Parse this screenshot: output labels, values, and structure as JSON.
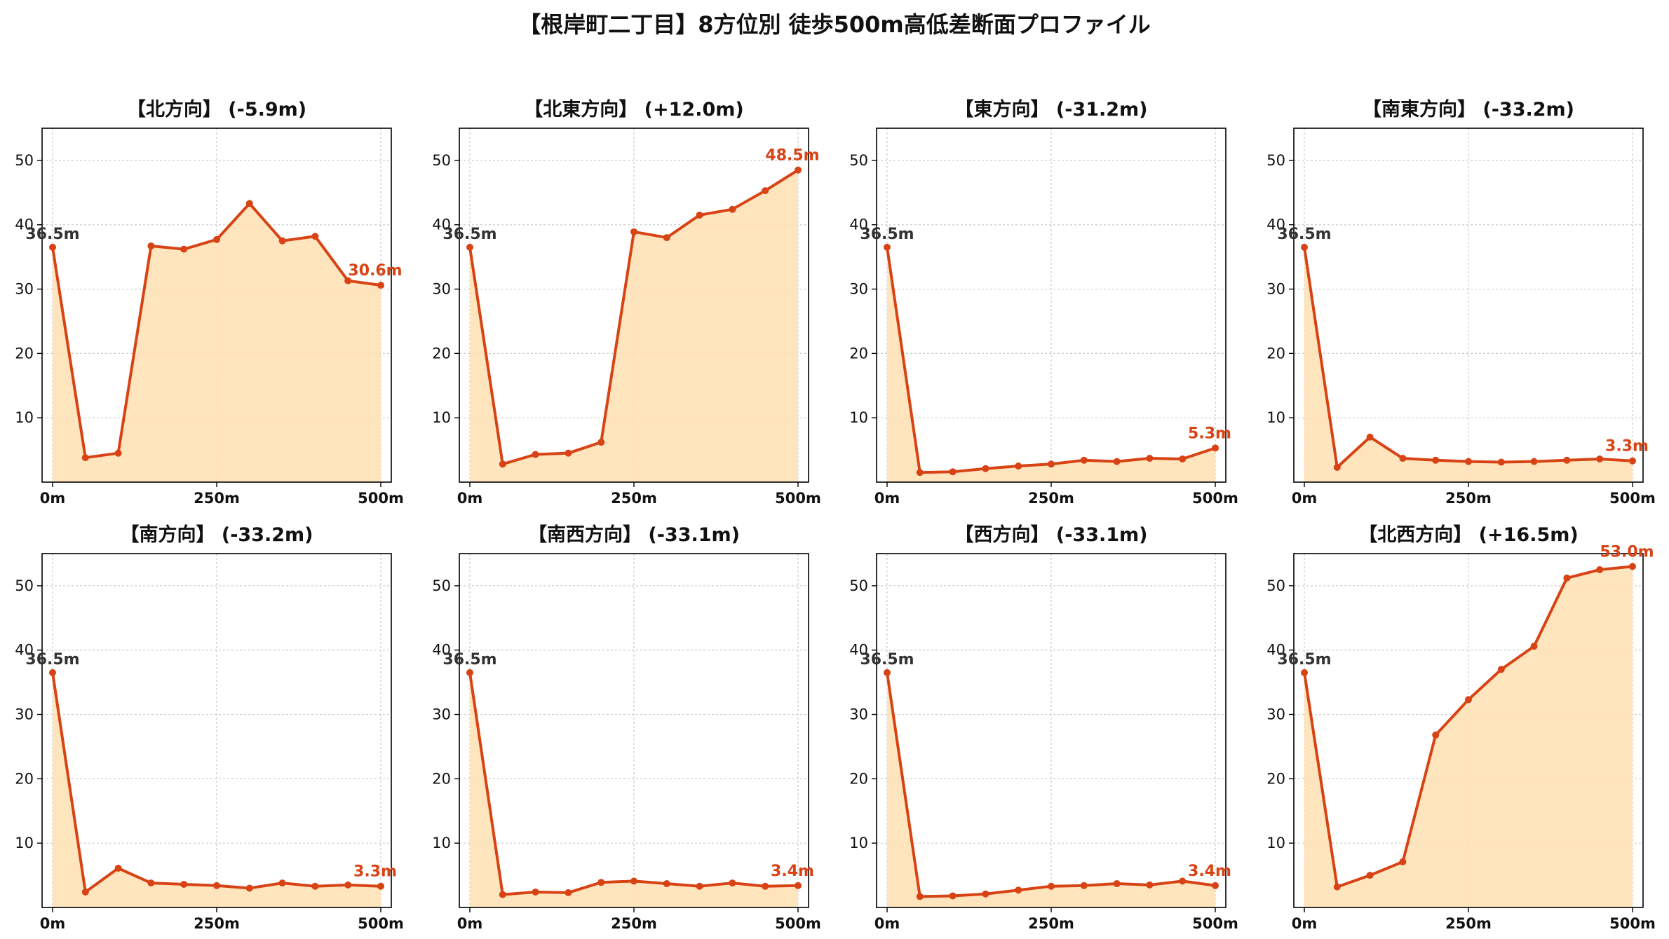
{
  "title": "【根岸町二丁目】8方位別 徒歩500m高低差断面プロファイル",
  "colors": {
    "line": "#d84315",
    "fill": "#ffe0b2",
    "start_label": "#333333",
    "end_label": "#d84315",
    "grid": "#cccccc"
  },
  "axis": {
    "x_ticks": [
      0,
      250,
      500
    ],
    "x_tick_labels": [
      "0m",
      "250m",
      "500m"
    ],
    "y_ticks": [
      10,
      20,
      30,
      40,
      50
    ],
    "y_tick_labels": [
      "10",
      "20",
      "30",
      "40",
      "50"
    ]
  },
  "chart_data": [
    {
      "type": "line",
      "title": "【北方向】 (-5.9m)",
      "x": [
        0,
        50,
        100,
        150,
        200,
        250,
        300,
        350,
        400,
        450,
        500
      ],
      "y": [
        36.5,
        3.8,
        4.5,
        36.7,
        36.2,
        37.7,
        43.3,
        37.5,
        38.2,
        31.3,
        30.6
      ],
      "start_label": "36.5m",
      "end_label": "30.6m",
      "xlim": [
        0,
        500
      ],
      "ylim": [
        0,
        55
      ],
      "grid": true
    },
    {
      "type": "line",
      "title": "【北東方向】 (+12.0m)",
      "x": [
        0,
        50,
        100,
        150,
        200,
        250,
        300,
        350,
        400,
        450,
        500
      ],
      "y": [
        36.5,
        2.8,
        4.3,
        4.5,
        6.2,
        38.9,
        38.0,
        41.5,
        42.4,
        45.3,
        48.5
      ],
      "start_label": "36.5m",
      "end_label": "48.5m",
      "xlim": [
        0,
        500
      ],
      "ylim": [
        0,
        55
      ],
      "grid": true
    },
    {
      "type": "line",
      "title": "【東方向】 (-31.2m)",
      "x": [
        0,
        50,
        100,
        150,
        200,
        250,
        300,
        350,
        400,
        450,
        500
      ],
      "y": [
        36.5,
        1.5,
        1.6,
        2.1,
        2.5,
        2.8,
        3.4,
        3.2,
        3.7,
        3.6,
        5.3
      ],
      "start_label": "36.5m",
      "end_label": "5.3m",
      "xlim": [
        0,
        500
      ],
      "ylim": [
        0,
        55
      ],
      "grid": true
    },
    {
      "type": "line",
      "title": "【南東方向】 (-33.2m)",
      "x": [
        0,
        50,
        100,
        150,
        200,
        250,
        300,
        350,
        400,
        450,
        500
      ],
      "y": [
        36.5,
        2.3,
        7.0,
        3.7,
        3.4,
        3.2,
        3.1,
        3.2,
        3.4,
        3.6,
        3.3
      ],
      "start_label": "36.5m",
      "end_label": "3.3m",
      "xlim": [
        0,
        500
      ],
      "ylim": [
        0,
        55
      ],
      "grid": true
    },
    {
      "type": "line",
      "title": "【南方向】 (-33.2m)",
      "x": [
        0,
        50,
        100,
        150,
        200,
        250,
        300,
        350,
        400,
        450,
        500
      ],
      "y": [
        36.5,
        2.4,
        6.1,
        3.8,
        3.6,
        3.4,
        3.0,
        3.8,
        3.3,
        3.5,
        3.3
      ],
      "start_label": "36.5m",
      "end_label": "3.3m",
      "xlim": [
        0,
        500
      ],
      "ylim": [
        0,
        55
      ],
      "grid": true
    },
    {
      "type": "line",
      "title": "【南西方向】 (-33.1m)",
      "x": [
        0,
        50,
        100,
        150,
        200,
        250,
        300,
        350,
        400,
        450,
        500
      ],
      "y": [
        36.5,
        2.0,
        2.4,
        2.3,
        3.9,
        4.1,
        3.7,
        3.3,
        3.8,
        3.3,
        3.4
      ],
      "start_label": "36.5m",
      "end_label": "3.4m",
      "xlim": [
        0,
        500
      ],
      "ylim": [
        0,
        55
      ],
      "grid": true
    },
    {
      "type": "line",
      "title": "【西方向】 (-33.1m)",
      "x": [
        0,
        50,
        100,
        150,
        200,
        250,
        300,
        350,
        400,
        450,
        500
      ],
      "y": [
        36.5,
        1.7,
        1.8,
        2.1,
        2.7,
        3.3,
        3.4,
        3.7,
        3.5,
        4.1,
        3.4
      ],
      "start_label": "36.5m",
      "end_label": "3.4m",
      "xlim": [
        0,
        500
      ],
      "ylim": [
        0,
        55
      ],
      "grid": true
    },
    {
      "type": "line",
      "title": "【北西方向】 (+16.5m)",
      "x": [
        0,
        50,
        100,
        150,
        200,
        250,
        300,
        350,
        400,
        450,
        500
      ],
      "y": [
        36.5,
        3.2,
        5.0,
        7.1,
        26.8,
        32.3,
        37.0,
        40.6,
        51.2,
        52.5,
        53.0
      ],
      "start_label": "36.5m",
      "end_label": "53.0m",
      "xlim": [
        0,
        500
      ],
      "ylim": [
        0,
        55
      ],
      "grid": true
    }
  ]
}
